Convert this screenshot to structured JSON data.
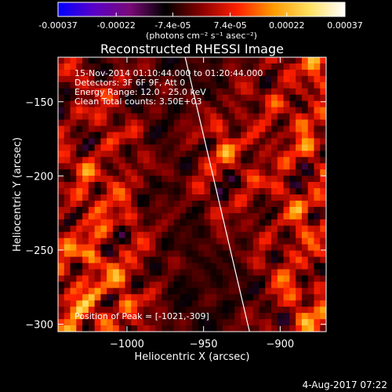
{
  "colorbar": {
    "ticks": [
      "-0.00037",
      "-0.00022",
      "-7.4e-05",
      "7.4e-05",
      "0.00022",
      "0.00037"
    ],
    "tick_values": [
      -0.00037,
      -0.00022,
      -7.4e-05,
      7.4e-05,
      0.00022,
      0.00037
    ],
    "range": [
      -0.00037,
      0.00037
    ],
    "units_label": "(photons cm⁻² s⁻¹ asec⁻²)",
    "colors": [
      "#0000ff",
      "#5a00c8",
      "#7a0a78",
      "#000000",
      "#8a0000",
      "#ff2000",
      "#ff9a00",
      "#ffe060",
      "#ffffff"
    ]
  },
  "chart_data": {
    "type": "heatmap",
    "title": "Reconstructed RHESSI Image",
    "xlabel": "Heliocentric X (arcsec)",
    "ylabel": "Heliocentric Y (arcsec)",
    "xlim": [
      -1045,
      -870
    ],
    "ylim": [
      -305,
      -120
    ],
    "xticks": [
      -1000,
      -950,
      -900
    ],
    "xtick_labels": [
      "−1000",
      "−950",
      "−900"
    ],
    "yticks": [
      -150,
      -200,
      -250,
      -300
    ],
    "ytick_labels": [
      "−150",
      "−200",
      "−250",
      "−300"
    ],
    "annotations": [
      "15-Nov-2014 01:10:44.000 to 01:20:44.000",
      "Detectors: 3F 6F 9F, Att 0",
      "Energy Range: 12.0 - 25.0 keV",
      "Clean    Total counts: 3.50E+03"
    ],
    "peak_label": "Position of Peak = [-1021,-309]",
    "peak": [
      -1021,
      -309
    ],
    "limb_line": [
      [
        -962,
        -120
      ],
      [
        -920,
        -305
      ]
    ]
  },
  "footer": {
    "date": "4-Aug-2017 07:22"
  }
}
